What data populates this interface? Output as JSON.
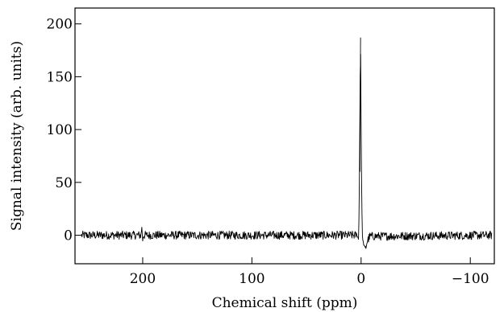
{
  "chart_data": {
    "type": "line",
    "title": "",
    "xlabel": "Chemical shift (ppm)",
    "ylabel": "Signal intensity (arb. units)",
    "xlim": [
      262,
      -122
    ],
    "ylim": [
      -27,
      215
    ],
    "x_reversed": true,
    "grid": false,
    "legend": "none",
    "x_ticks": [
      200,
      100,
      0,
      -100
    ],
    "x_tick_labels": [
      "200",
      "100",
      "0",
      "−100"
    ],
    "y_ticks": [
      0,
      50,
      100,
      150,
      200
    ],
    "y_tick_labels": [
      "0",
      "50",
      "100",
      "150",
      "200"
    ],
    "noise_amplitude": 4,
    "series": [
      {
        "line_color": "#000000",
        "features": [
          {
            "x": 256,
            "y": 0
          },
          {
            "x": 201.5,
            "y": 0
          },
          {
            "x": 200.8,
            "y": 9
          },
          {
            "x": 200.2,
            "y": -6
          },
          {
            "x": 199.5,
            "y": 0
          },
          {
            "x": 3.5,
            "y": 0
          },
          {
            "x": 2.2,
            "y": -5
          },
          {
            "x": 1.5,
            "y": 60
          },
          {
            "x": 0.9,
            "y": 140
          },
          {
            "x": 0.5,
            "y": 187
          },
          {
            "x": 0.0,
            "y": 110
          },
          {
            "x": -0.6,
            "y": 30
          },
          {
            "x": -1.3,
            "y": -4
          },
          {
            "x": -2.5,
            "y": -9
          },
          {
            "x": -4.0,
            "y": -13
          },
          {
            "x": -5.5,
            "y": -6
          },
          {
            "x": -8.0,
            "y": -1
          },
          {
            "x": -120,
            "y": 0
          }
        ]
      }
    ]
  }
}
